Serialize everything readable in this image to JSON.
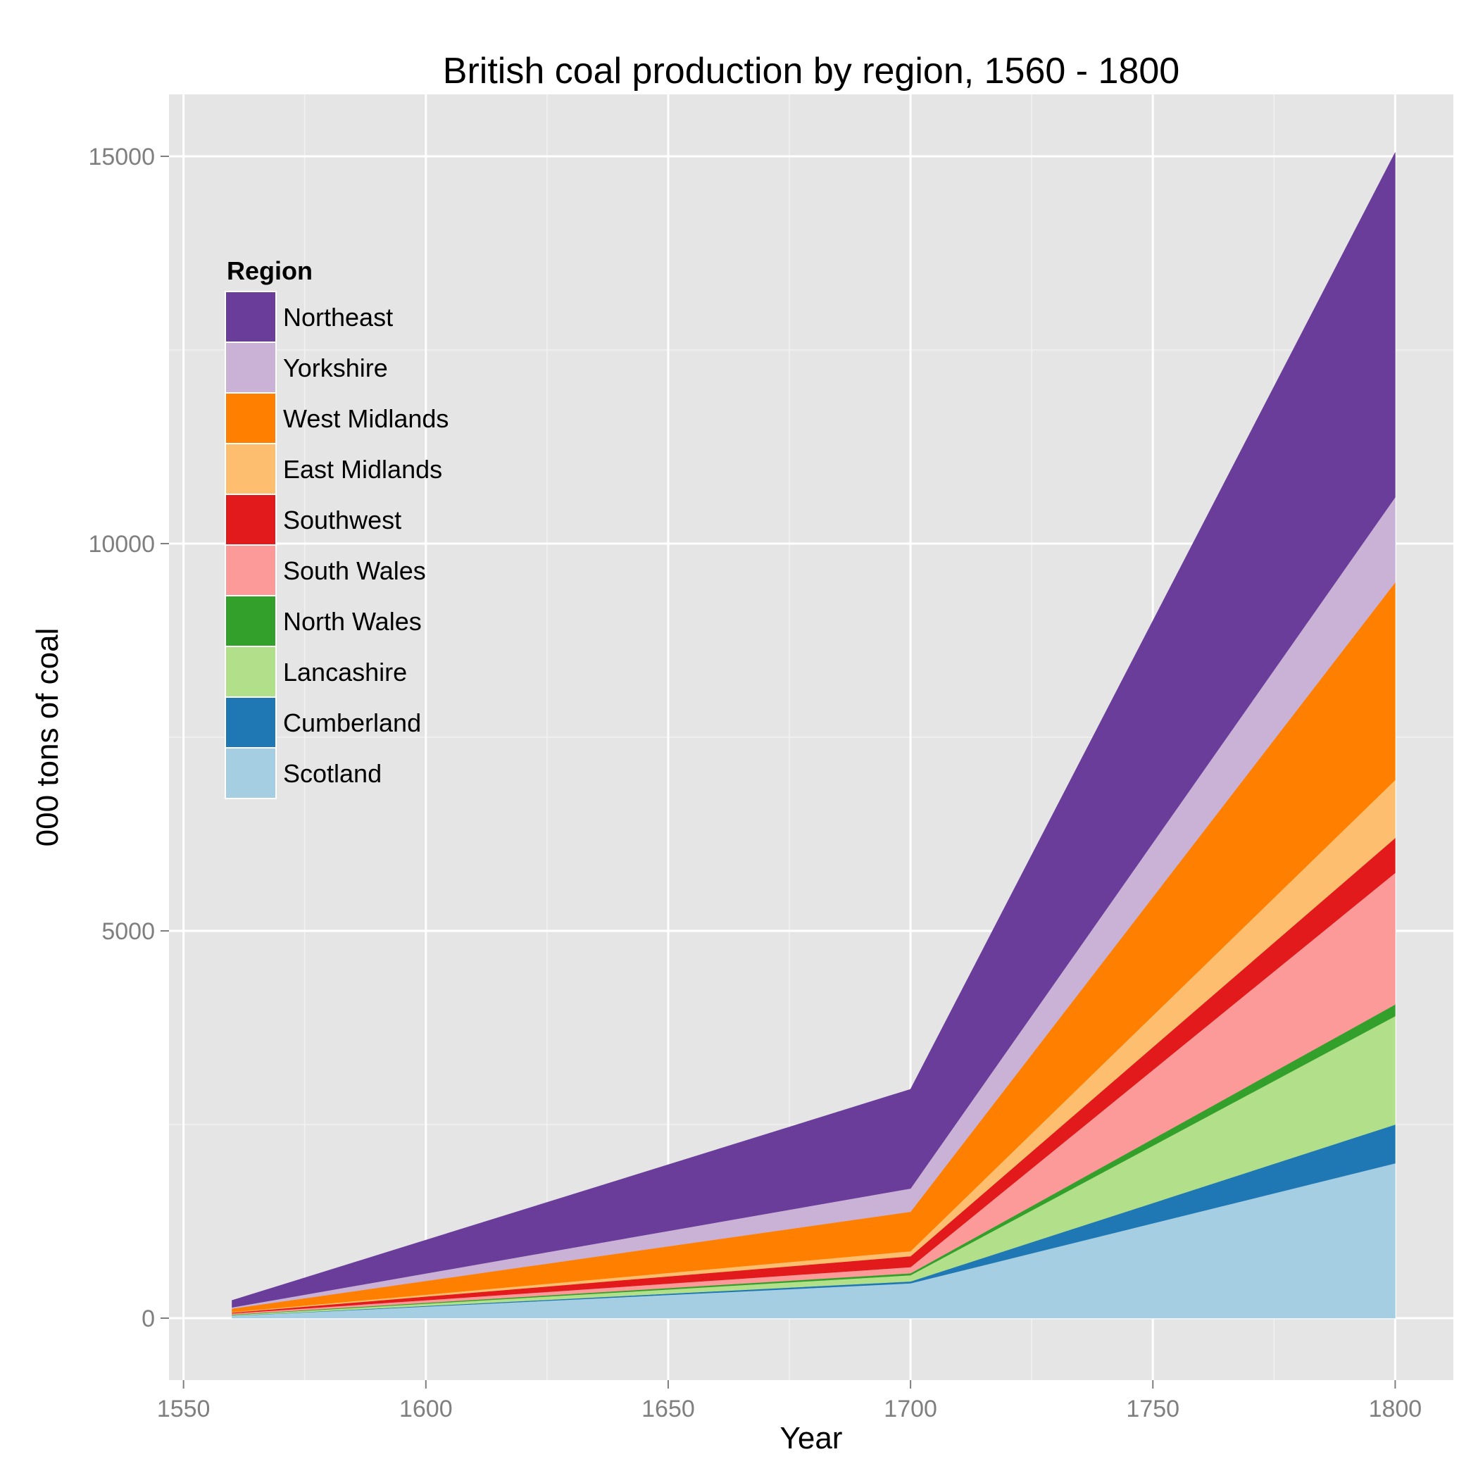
{
  "chart_data": {
    "type": "area",
    "stacked": true,
    "title": "British coal production by region, 1560 - 1800",
    "xlabel": "Year",
    "ylabel": "000 tons of coal",
    "xlim": [
      1547,
      1812
    ],
    "ylim": [
      -800,
      15800
    ],
    "xticks": [
      1550,
      1600,
      1650,
      1700,
      1750,
      1800
    ],
    "yticks": [
      0,
      5000,
      10000,
      15000
    ],
    "grid": true,
    "legend": {
      "title": "Region",
      "placement": "top-left"
    },
    "x": [
      1560,
      1700,
      1800
    ],
    "series": [
      {
        "name": "Scotland",
        "color": "#a6cee3",
        "values": [
          30,
          450,
          2000
        ]
      },
      {
        "name": "Cumberland",
        "color": "#1f78b4",
        "values": [
          2,
          25,
          500
        ]
      },
      {
        "name": "Lancashire",
        "color": "#b2df8a",
        "values": [
          10,
          80,
          1400
        ]
      },
      {
        "name": "North Wales",
        "color": "#33a02c",
        "values": [
          5,
          25,
          150
        ]
      },
      {
        "name": "South Wales",
        "color": "#fb9a99",
        "values": [
          15,
          80,
          1700
        ]
      },
      {
        "name": "Southwest",
        "color": "#e31a1c",
        "values": [
          10,
          140,
          450
        ]
      },
      {
        "name": "East Midlands",
        "color": "#fdbf6f",
        "values": [
          7,
          65,
          750
        ]
      },
      {
        "name": "West Midlands",
        "color": "#ff7f00",
        "values": [
          45,
          510,
          2550
        ]
      },
      {
        "name": "Yorkshire",
        "color": "#cab2d6",
        "values": [
          15,
          300,
          1100
        ]
      },
      {
        "name": "Northeast",
        "color": "#6a3d9a",
        "values": [
          90,
          1280,
          4450
        ]
      }
    ]
  }
}
